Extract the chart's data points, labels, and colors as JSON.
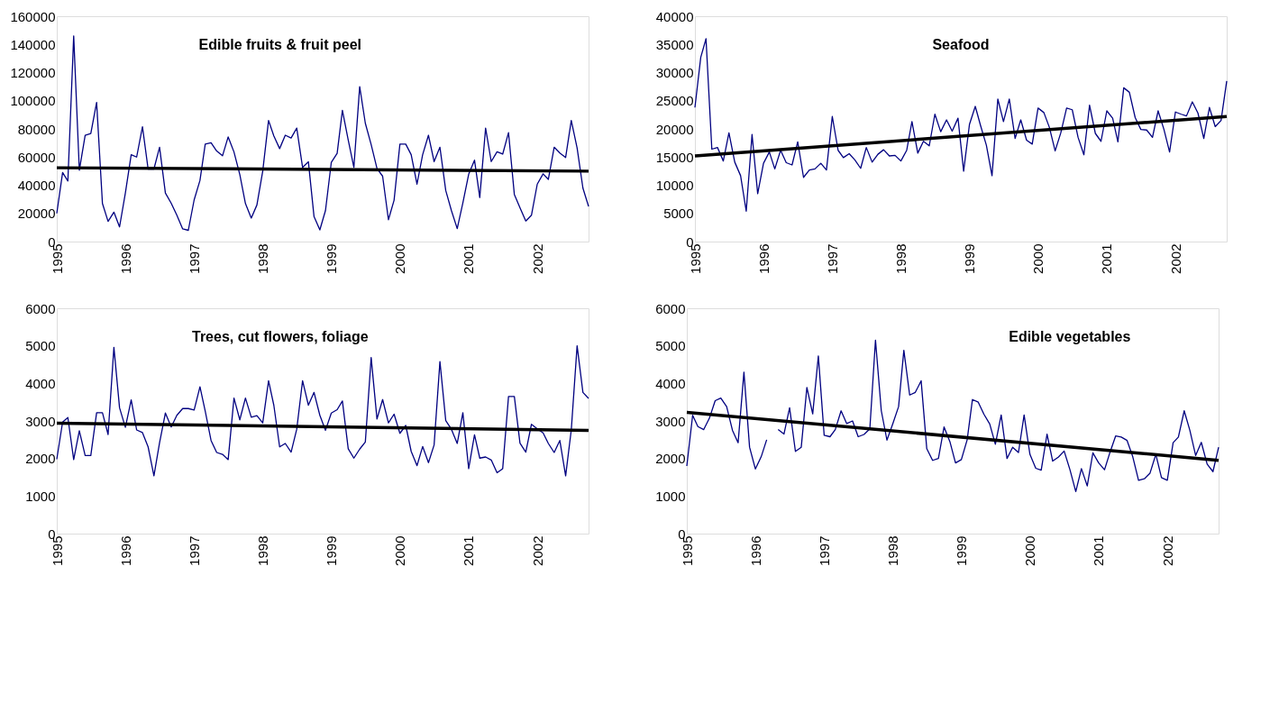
{
  "chart_data": [
    {
      "type": "line",
      "title": "Edible fruits & fruit peel",
      "x": [
        "1995-01",
        "1995-02",
        "1995-03",
        "1995-04",
        "1995-05",
        "1995-06",
        "1995-07",
        "1995-08",
        "1995-09",
        "1995-10",
        "1995-11",
        "1995-12",
        "1996-01",
        "1996-02",
        "1996-03",
        "1996-04",
        "1996-05",
        "1996-06",
        "1996-07",
        "1996-08",
        "1996-09",
        "1996-10",
        "1996-11",
        "1996-12",
        "1997-01",
        "1997-02",
        "1997-03",
        "1997-04",
        "1997-05",
        "1997-06",
        "1997-07",
        "1997-08",
        "1997-09",
        "1997-10",
        "1997-11",
        "1997-12",
        "1998-01",
        "1998-02",
        "1998-03",
        "1998-04",
        "1998-05",
        "1998-06",
        "1998-07",
        "1998-08",
        "1998-09",
        "1998-10",
        "1998-11",
        "1998-12",
        "1999-01",
        "1999-02",
        "1999-03",
        "1999-04",
        "1999-05",
        "1999-06",
        "1999-07",
        "1999-08",
        "1999-09",
        "1999-10",
        "1999-11",
        "1999-12",
        "2000-01",
        "2000-02",
        "2000-03",
        "2000-04",
        "2000-05",
        "2000-06",
        "2000-07",
        "2000-08",
        "2000-09",
        "2000-10",
        "2000-11",
        "2000-12",
        "2001-01",
        "2001-02",
        "2001-03",
        "2001-04",
        "2001-05",
        "2001-06",
        "2001-07",
        "2001-08",
        "2001-09",
        "2001-10",
        "2001-11",
        "2001-12",
        "2002-01",
        "2002-02",
        "2002-03",
        "2002-04",
        "2002-05",
        "2002-06",
        "2002-07",
        "2002-08",
        "2002-09",
        "2002-10"
      ],
      "series": [
        {
          "color": "#000080",
          "values": [
            20000,
            49000,
            43000,
            146000,
            50700,
            75500,
            76700,
            98800,
            27000,
            14300,
            20900,
            10400,
            34500,
            61700,
            60000,
            81500,
            51500,
            51500,
            67000,
            34500,
            27200,
            18700,
            9000,
            8000,
            29600,
            43400,
            69200,
            70100,
            64300,
            60900,
            74300,
            63600,
            47600,
            27000,
            16700,
            26000,
            50000,
            86000,
            75000,
            66000,
            75500,
            73500,
            80600,
            52700,
            56600,
            17700,
            8300,
            22100,
            56300,
            62600,
            93200,
            72100,
            52700,
            110000,
            84000,
            68900,
            51900,
            46400,
            15500,
            29400,
            69200,
            69200,
            61700,
            40800,
            61700,
            75500,
            56800,
            67000,
            36200,
            22100,
            9200,
            27400,
            47800,
            57800,
            31300,
            80600,
            56800,
            63800,
            62100,
            77400,
            33500,
            24000,
            14600,
            18700,
            40800,
            48100,
            44200,
            67000,
            62900,
            59700,
            86000,
            66500,
            37900,
            25000
          ]
        },
        {
          "type": "line",
          "color": "#000000",
          "x": [
            "1995-01",
            "2002-10"
          ],
          "values": [
            52400,
            50000
          ]
        }
      ],
      "xlim": [
        "1995-01",
        "2002-10"
      ],
      "xticks": [
        "1995",
        "1996",
        "1997",
        "1998",
        "1999",
        "2000",
        "2001",
        "2002"
      ],
      "ylim": [
        0,
        160000
      ],
      "yticks": [
        0,
        20000,
        40000,
        60000,
        80000,
        100000,
        120000,
        140000,
        160000
      ]
    },
    {
      "type": "line",
      "title": "Seafood",
      "x": [
        "1995-01",
        "1995-02",
        "1995-03",
        "1995-04",
        "1995-05",
        "1995-06",
        "1995-07",
        "1995-08",
        "1995-09",
        "1995-10",
        "1995-11",
        "1995-12",
        "1996-01",
        "1996-02",
        "1996-03",
        "1996-04",
        "1996-05",
        "1996-06",
        "1996-07",
        "1996-08",
        "1996-09",
        "1996-10",
        "1996-11",
        "1996-12",
        "1997-01",
        "1997-02",
        "1997-03",
        "1997-04",
        "1997-05",
        "1997-06",
        "1997-07",
        "1997-08",
        "1997-09",
        "1997-10",
        "1997-11",
        "1997-12",
        "1998-01",
        "1998-02",
        "1998-03",
        "1998-04",
        "1998-05",
        "1998-06",
        "1998-07",
        "1998-08",
        "1998-09",
        "1998-10",
        "1998-11",
        "1998-12",
        "1999-01",
        "1999-02",
        "1999-03",
        "1999-04",
        "1999-05",
        "1999-06",
        "1999-07",
        "1999-08",
        "1999-09",
        "1999-10",
        "1999-11",
        "1999-12",
        "2000-01",
        "2000-02",
        "2000-03",
        "2000-04",
        "2000-05",
        "2000-06",
        "2000-07",
        "2000-08",
        "2000-09",
        "2000-10",
        "2000-11",
        "2000-12",
        "2001-01",
        "2001-02",
        "2001-03",
        "2001-04",
        "2001-05",
        "2001-06",
        "2001-07",
        "2001-08",
        "2001-09",
        "2001-10",
        "2001-11",
        "2001-12",
        "2002-01",
        "2002-02",
        "2002-03",
        "2002-04",
        "2002-05",
        "2002-06",
        "2002-07",
        "2002-08",
        "2002-09",
        "2002-10"
      ],
      "series": [
        {
          "color": "#000080",
          "values": [
            23800,
            32700,
            36000,
            16400,
            16700,
            14300,
            19300,
            14100,
            11700,
            5400,
            19000,
            8500,
            13900,
            15900,
            12900,
            16200,
            14000,
            13600,
            17700,
            11400,
            12700,
            12900,
            13900,
            12700,
            22200,
            16200,
            14900,
            15600,
            14500,
            13000,
            16700,
            14100,
            15500,
            16300,
            15200,
            15300,
            14300,
            16200,
            21300,
            15700,
            17800,
            17000,
            22600,
            19500,
            21600,
            19600,
            21900,
            12500,
            20800,
            24000,
            20600,
            17100,
            11700,
            25300,
            21300,
            25300,
            18300,
            21600,
            18000,
            17300,
            23700,
            22900,
            20300,
            16100,
            19300,
            23700,
            23400,
            18500,
            15400,
            24200,
            19200,
            17800,
            23200,
            21900,
            17700,
            27300,
            26500,
            22000,
            19900,
            19800,
            18500,
            23200,
            19900,
            15900,
            23000,
            22600,
            22300,
            24800,
            22800,
            18300,
            23800,
            20400,
            21500,
            28500
          ]
        },
        {
          "type": "line",
          "color": "#000000",
          "x": [
            "1995-01",
            "2002-10"
          ],
          "values": [
            15200,
            22200
          ]
        }
      ],
      "xlim": [
        "1995-01",
        "2002-10"
      ],
      "xticks": [
        "1995",
        "1996",
        "1997",
        "1998",
        "1999",
        "2000",
        "2001",
        "2002"
      ],
      "ylim": [
        0,
        40000
      ],
      "yticks": [
        0,
        5000,
        10000,
        15000,
        20000,
        25000,
        30000,
        35000,
        40000
      ]
    },
    {
      "type": "line",
      "title": "Trees, cut flowers, foliage",
      "x": [
        "1995-01",
        "1995-02",
        "1995-03",
        "1995-04",
        "1995-05",
        "1995-06",
        "1995-07",
        "1995-08",
        "1995-09",
        "1995-10",
        "1995-11",
        "1995-12",
        "1996-01",
        "1996-02",
        "1996-03",
        "1996-04",
        "1996-05",
        "1996-06",
        "1996-07",
        "1996-08",
        "1996-09",
        "1996-10",
        "1996-11",
        "1996-12",
        "1997-01",
        "1997-02",
        "1997-03",
        "1997-04",
        "1997-05",
        "1997-06",
        "1997-07",
        "1997-08",
        "1997-09",
        "1997-10",
        "1997-11",
        "1997-12",
        "1998-01",
        "1998-02",
        "1998-03",
        "1998-04",
        "1998-05",
        "1998-06",
        "1998-07",
        "1998-08",
        "1998-09",
        "1998-10",
        "1998-11",
        "1998-12",
        "1999-01",
        "1999-02",
        "1999-03",
        "1999-04",
        "1999-05",
        "1999-06",
        "1999-07",
        "1999-08",
        "1999-09",
        "1999-10",
        "1999-11",
        "1999-12",
        "2000-01",
        "2000-02",
        "2000-03",
        "2000-04",
        "2000-05",
        "2000-06",
        "2000-07",
        "2000-08",
        "2000-09",
        "2000-10",
        "2000-11",
        "2000-12",
        "2001-01",
        "2001-02",
        "2001-03",
        "2001-04",
        "2001-05",
        "2001-06",
        "2001-07",
        "2001-08",
        "2001-09",
        "2001-10",
        "2001-11",
        "2001-12",
        "2002-01",
        "2002-02",
        "2002-03",
        "2002-04",
        "2002-05",
        "2002-06",
        "2002-07",
        "2002-08",
        "2002-09",
        "2002-10"
      ],
      "series": [
        {
          "color": "#000080",
          "values": [
            1980,
            2970,
            3090,
            1970,
            2740,
            2080,
            2080,
            3220,
            3220,
            2640,
            4960,
            3350,
            2830,
            3560,
            2760,
            2690,
            2310,
            1540,
            2420,
            3210,
            2840,
            3150,
            3330,
            3330,
            3290,
            3910,
            3260,
            2480,
            2160,
            2110,
            1970,
            3610,
            3030,
            3610,
            3100,
            3140,
            2950,
            4070,
            3420,
            2310,
            2400,
            2170,
            2780,
            4070,
            3420,
            3760,
            3150,
            2750,
            3210,
            3300,
            3530,
            2260,
            2010,
            2250,
            2440,
            4690,
            3050,
            3570,
            2950,
            3180,
            2670,
            2880,
            2190,
            1810,
            2320,
            1890,
            2360,
            4580,
            3010,
            2780,
            2400,
            3220,
            1730,
            2630,
            2010,
            2040,
            1960,
            1620,
            1730,
            3650,
            3650,
            2410,
            2170,
            2910,
            2790,
            2680,
            2400,
            2160,
            2480,
            1540,
            2760,
            5000,
            3760,
            3600
          ]
        },
        {
          "type": "line",
          "color": "#000000",
          "x": [
            "1995-01",
            "2002-10"
          ],
          "values": [
            2940,
            2750
          ]
        }
      ],
      "xlim": [
        "1995-01",
        "2002-10"
      ],
      "xticks": [
        "1995",
        "1996",
        "1997",
        "1998",
        "1999",
        "2000",
        "2001",
        "2002"
      ],
      "ylim": [
        0,
        6000
      ],
      "yticks": [
        0,
        1000,
        2000,
        3000,
        4000,
        5000,
        6000
      ]
    },
    {
      "type": "line",
      "title": "Edible vegetables",
      "x": [
        "1995-01",
        "1995-02",
        "1995-03",
        "1995-04",
        "1995-05",
        "1995-06",
        "1995-07",
        "1995-08",
        "1995-09",
        "1995-10",
        "1995-11",
        "1995-12",
        "1996-01",
        "1996-02",
        "1996-03",
        "1996-04",
        "1996-05",
        "1996-06",
        "1996-07",
        "1996-08",
        "1996-09",
        "1996-10",
        "1996-11",
        "1996-12",
        "1997-01",
        "1997-02",
        "1997-03",
        "1997-04",
        "1997-05",
        "1997-06",
        "1997-07",
        "1997-08",
        "1997-09",
        "1997-10",
        "1997-11",
        "1997-12",
        "1998-01",
        "1998-02",
        "1998-03",
        "1998-04",
        "1998-05",
        "1998-06",
        "1998-07",
        "1998-08",
        "1998-09",
        "1998-10",
        "1998-11",
        "1998-12",
        "1999-01",
        "1999-02",
        "1999-03",
        "1999-04",
        "1999-05",
        "1999-06",
        "1999-07",
        "1999-08",
        "1999-09",
        "1999-10",
        "1999-11",
        "1999-12",
        "2000-01",
        "2000-02",
        "2000-03",
        "2000-04",
        "2000-05",
        "2000-06",
        "2000-07",
        "2000-08",
        "2000-09",
        "2000-10",
        "2000-11",
        "2000-12",
        "2001-01",
        "2001-02",
        "2001-03",
        "2001-04",
        "2001-05",
        "2001-06",
        "2001-07",
        "2001-08",
        "2001-09",
        "2001-10",
        "2001-11",
        "2001-12",
        "2002-01",
        "2002-02",
        "2002-03",
        "2002-04",
        "2002-05",
        "2002-06",
        "2002-07",
        "2002-08",
        "2002-09",
        "2002-10"
      ],
      "series": [
        {
          "color": "#000080",
          "values": [
            1800,
            3150,
            2850,
            2770,
            3070,
            3540,
            3610,
            3380,
            2750,
            2420,
            4300,
            2300,
            1720,
            2050,
            2500,
            null,
            2770,
            2650,
            3350,
            2190,
            2300,
            3890,
            3190,
            4730,
            2620,
            2580,
            2770,
            3270,
            2930,
            3000,
            2580,
            2640,
            2790,
            5150,
            3270,
            2490,
            2920,
            3380,
            4880,
            3690,
            3760,
            4070,
            2260,
            1950,
            2000,
            2840,
            2450,
            1880,
            1970,
            2500,
            3570,
            3500,
            3180,
            2920,
            2380,
            3160,
            2000,
            2300,
            2160,
            3160,
            2110,
            1740,
            1690,
            2650,
            1930,
            2040,
            2200,
            1700,
            1120,
            1730,
            1270,
            2150,
            1880,
            1700,
            2150,
            2600,
            2570,
            2480,
            2050,
            1420,
            1460,
            1610,
            2110,
            1490,
            1420,
            2420,
            2570,
            3270,
            2750,
            2080,
            2430,
            1850,
            1650,
            2300
          ]
        },
        {
          "type": "line",
          "color": "#000000",
          "x": [
            "1995-01",
            "2002-10"
          ],
          "values": [
            3230,
            1950
          ]
        }
      ],
      "xlim": [
        "1995-01",
        "2002-10"
      ],
      "xticks": [
        "1995",
        "1996",
        "1997",
        "1998",
        "1999",
        "2000",
        "2001",
        "2002"
      ],
      "ylim": [
        0,
        6000
      ],
      "yticks": [
        0,
        1000,
        2000,
        3000,
        4000,
        5000,
        6000
      ]
    }
  ]
}
